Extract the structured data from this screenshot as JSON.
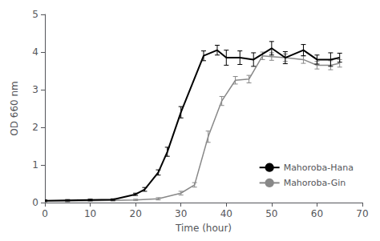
{
  "chart_data": {
    "type": "line",
    "xlabel": "Time (hour)",
    "ylabel": "OD 660 nm",
    "xlim": [
      0,
      70
    ],
    "ylim": [
      0,
      5
    ],
    "xticks": [
      0,
      10,
      20,
      30,
      40,
      50,
      60,
      70
    ],
    "yticks": [
      0,
      1,
      2,
      3,
      4,
      5
    ],
    "grid": false,
    "legend": "lower right",
    "series": [
      {
        "name": "Mahoroba-Hana",
        "color": "#000000",
        "x": [
          0,
          5,
          10,
          15,
          20,
          22,
          25,
          27,
          30,
          35,
          38,
          40,
          43,
          46,
          50,
          53,
          57,
          60,
          63,
          65
        ],
        "values": [
          0.05,
          0.06,
          0.07,
          0.08,
          0.22,
          0.35,
          0.8,
          1.35,
          2.4,
          3.9,
          4.05,
          3.85,
          3.85,
          3.8,
          4.1,
          3.85,
          4.05,
          3.8,
          3.8,
          3.85
        ],
        "errors": [
          0.02,
          0.02,
          0.02,
          0.02,
          0.03,
          0.05,
          0.07,
          0.12,
          0.15,
          0.13,
          0.13,
          0.2,
          0.18,
          0.18,
          0.18,
          0.16,
          0.15,
          0.12,
          0.18,
          0.12
        ]
      },
      {
        "name": "Mahoroba-Gin",
        "color": "#888888",
        "x": [
          0,
          5,
          10,
          15,
          20,
          25,
          30,
          33,
          36,
          39,
          42,
          45,
          48,
          50,
          53,
          57,
          60,
          63,
          65
        ],
        "values": [
          0.04,
          0.04,
          0.05,
          0.06,
          0.07,
          0.1,
          0.25,
          0.47,
          1.75,
          2.7,
          3.25,
          3.28,
          3.9,
          3.88,
          3.85,
          3.8,
          3.65,
          3.65,
          3.7
        ],
        "errors": [
          0.02,
          0.02,
          0.02,
          0.02,
          0.02,
          0.03,
          0.05,
          0.06,
          0.15,
          0.12,
          0.1,
          0.1,
          0.1,
          0.1,
          0.1,
          0.1,
          0.1,
          0.12,
          0.1
        ]
      }
    ]
  }
}
